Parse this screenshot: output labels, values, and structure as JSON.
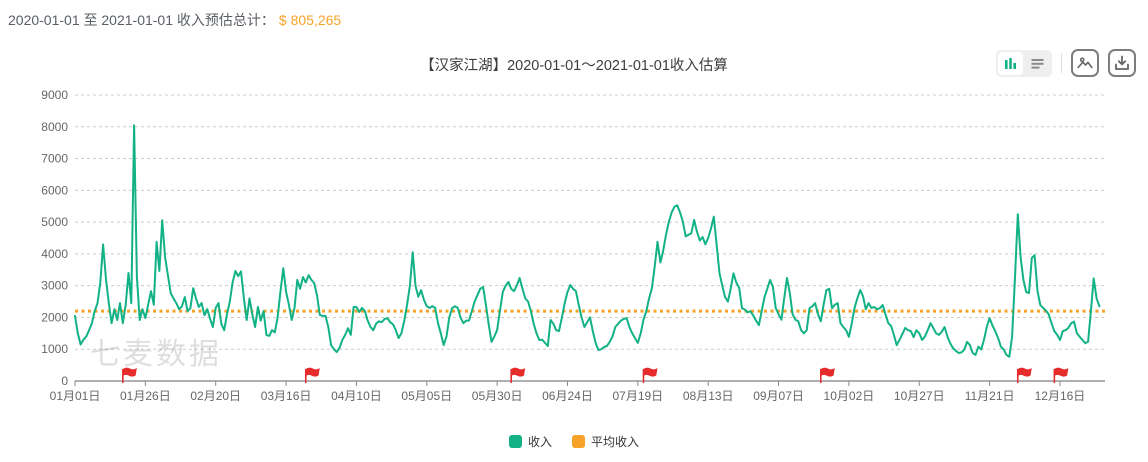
{
  "summary": {
    "range_label": "2020-01-01 至 2021-01-01 收入预估总计：",
    "total_value": "$ 805,265",
    "total_color": "#f7a228"
  },
  "header": {
    "title": "【汉家江湖】2020-01-01～2021-01-01收入估算"
  },
  "toolbar": {
    "icons": [
      "bar-chart-view-icon",
      "data-list-view-icon",
      "export-image-icon",
      "download-icon"
    ],
    "active_color": "#12b286",
    "inactive_color": "#8a8a8a"
  },
  "watermark": "七麦数据",
  "legend": [
    {
      "label": "收入",
      "color": "#12b286"
    },
    {
      "label": "平均收入",
      "color": "#f7a228"
    }
  ],
  "chart_data": {
    "type": "line",
    "title": "【汉家江湖】2020-01-01～2021-01-01收入估算",
    "xlabel": "",
    "ylabel": "",
    "ylim": [
      0,
      9000
    ],
    "y_tick_interval": 1000,
    "grid": "horizontal-dashed",
    "legend_position": "bottom",
    "days_total": 366,
    "start_date": "2020-01-01",
    "end_date": "2021-01-01",
    "x_ticks": [
      {
        "day": 0,
        "label": "01月01日"
      },
      {
        "day": 25,
        "label": "01月26日"
      },
      {
        "day": 50,
        "label": "02月20日"
      },
      {
        "day": 75,
        "label": "03月16日"
      },
      {
        "day": 100,
        "label": "04月10日"
      },
      {
        "day": 125,
        "label": "05月05日"
      },
      {
        "day": 150,
        "label": "05月30日"
      },
      {
        "day": 175,
        "label": "06月24日"
      },
      {
        "day": 200,
        "label": "07月19日"
      },
      {
        "day": 225,
        "label": "08月13日"
      },
      {
        "day": 250,
        "label": "09月07日"
      },
      {
        "day": 275,
        "label": "10月02日"
      },
      {
        "day": 300,
        "label": "10月27日"
      },
      {
        "day": 325,
        "label": "11月21日"
      },
      {
        "day": 350,
        "label": "12月16日"
      }
    ],
    "flags": {
      "color": "#e62b2b",
      "days": [
        17,
        82,
        155,
        202,
        265,
        335,
        348
      ]
    },
    "series": [
      {
        "name": "收入",
        "color": "#12b286",
        "unit": "USD",
        "values": [
          2050,
          1500,
          1150,
          1300,
          1400,
          1600,
          1820,
          2200,
          2450,
          3100,
          4300,
          3200,
          2450,
          1820,
          2260,
          1920,
          2450,
          1820,
          2400,
          3400,
          2450,
          8050,
          3280,
          1920,
          2260,
          1980,
          2400,
          2830,
          2400,
          4380,
          3460,
          5060,
          3900,
          3330,
          2770,
          2600,
          2450,
          2260,
          2350,
          2640,
          2200,
          2290,
          2920,
          2600,
          2330,
          2450,
          2070,
          2260,
          1950,
          1700,
          2300,
          2450,
          1800,
          1600,
          2100,
          2500,
          3100,
          3460,
          3300,
          3450,
          2600,
          1920,
          2600,
          2100,
          1700,
          2330,
          1900,
          2200,
          1450,
          1420,
          1600,
          1530,
          2000,
          2800,
          3550,
          2800,
          2400,
          1920,
          2300,
          3180,
          2900,
          3270,
          3100,
          3330,
          3180,
          3080,
          2700,
          2080,
          2050,
          2050,
          1700,
          1130,
          1000,
          910,
          1040,
          1290,
          1450,
          1660,
          1450,
          2330,
          2330,
          2170,
          2300,
          2200,
          1900,
          1700,
          1600,
          1800,
          1880,
          1850,
          1950,
          1980,
          1850,
          1780,
          1600,
          1350,
          1500,
          1900,
          2400,
          3000,
          4050,
          3000,
          2650,
          2860,
          2550,
          2350,
          2300,
          2350,
          2300,
          1820,
          1500,
          1130,
          1400,
          2000,
          2290,
          2350,
          2300,
          2000,
          1820,
          1900,
          1900,
          2200,
          2500,
          2700,
          2900,
          2960,
          2400,
          1780,
          1230,
          1400,
          1600,
          2200,
          2800,
          3000,
          3120,
          2900,
          2830,
          3000,
          3240,
          2900,
          2600,
          2500,
          2200,
          1800,
          1500,
          1290,
          1300,
          1200,
          1100,
          1920,
          1800,
          1600,
          1570,
          2000,
          2450,
          2800,
          3020,
          2900,
          2830,
          2400,
          2000,
          1700,
          1850,
          2000,
          1570,
          1200,
          975,
          1000,
          1070,
          1100,
          1230,
          1400,
          1700,
          1800,
          1900,
          1950,
          1980,
          1700,
          1500,
          1350,
          1200,
          1500,
          1930,
          2200,
          2600,
          2920,
          3600,
          4380,
          3730,
          4100,
          4600,
          5000,
          5300,
          5480,
          5530,
          5300,
          5010,
          4550,
          4600,
          4650,
          5070,
          4700,
          4420,
          4530,
          4300,
          4500,
          4800,
          5170,
          4300,
          3390,
          3000,
          2640,
          2500,
          2900,
          3390,
          3100,
          2930,
          2290,
          2250,
          2160,
          2200,
          2060,
          1900,
          1760,
          2200,
          2640,
          2900,
          3180,
          2960,
          2300,
          2100,
          1930,
          2600,
          3240,
          2770,
          2100,
          1930,
          1880,
          1600,
          1500,
          1600,
          2290,
          2350,
          2450,
          2100,
          1880,
          2400,
          2860,
          2900,
          2290,
          2400,
          2450,
          1820,
          1700,
          1600,
          1390,
          1800,
          2290,
          2600,
          2860,
          2670,
          2260,
          2450,
          2300,
          2330,
          2260,
          2290,
          2390,
          2100,
          1820,
          1730,
          1450,
          1130,
          1300,
          1480,
          1670,
          1600,
          1570,
          1380,
          1600,
          1500,
          1290,
          1400,
          1600,
          1820,
          1670,
          1500,
          1450,
          1550,
          1700,
          1400,
          1190,
          1040,
          950,
          880,
          900,
          990,
          1230,
          1130,
          880,
          820,
          1080,
          990,
          1300,
          1700,
          1980,
          1750,
          1570,
          1350,
          1080,
          990,
          820,
          760,
          1390,
          3200,
          5250,
          3900,
          3180,
          2800,
          2770,
          3870,
          3960,
          2830,
          2390,
          2300,
          2220,
          2100,
          1820,
          1570,
          1450,
          1290,
          1570,
          1600,
          1670,
          1820,
          1870,
          1500,
          1390,
          1290,
          1190,
          1240,
          2200,
          3230,
          2600,
          2350
        ]
      },
      {
        "name": "平均收入",
        "color": "#f7a228",
        "style": "dotted",
        "average_value": 2200
      }
    ]
  }
}
